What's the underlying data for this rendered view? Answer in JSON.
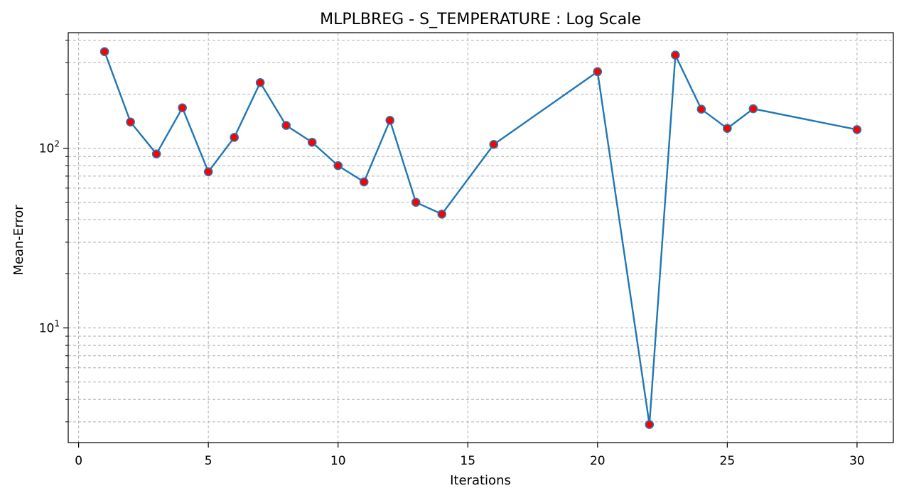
{
  "chart_data": {
    "type": "line",
    "title": "MLPLBREG - S_TEMPERATURE : Log Scale",
    "xlabel": "Iterations",
    "ylabel": "Mean-Error",
    "xlim": [
      -0.4,
      31.4
    ],
    "ylim": [
      2.3,
      440
    ],
    "yscale": "log",
    "grid": true,
    "x_ticks": [
      0,
      5,
      10,
      15,
      20,
      25,
      30
    ],
    "y_major_ticks": [
      {
        "value": 10,
        "base": "10",
        "exp": "1"
      },
      {
        "value": 100,
        "base": "10",
        "exp": "2"
      }
    ],
    "y_minor_ticks": [
      3,
      4,
      5,
      6,
      7,
      8,
      9,
      20,
      30,
      40,
      50,
      60,
      70,
      80,
      90,
      200,
      300,
      400
    ],
    "series": [
      {
        "x": [
          1,
          2,
          3,
          4,
          5,
          6,
          7,
          8,
          9,
          10,
          11,
          12,
          13,
          14,
          16,
          20,
          22,
          23,
          24,
          25,
          26,
          30
        ],
        "y": [
          345,
          140,
          93,
          168,
          74,
          115,
          232,
          134,
          108,
          80,
          65,
          143,
          50,
          43,
          105,
          267,
          2.9,
          330,
          165,
          129,
          166,
          127
        ]
      }
    ],
    "colors": {
      "line": "#1f77b4",
      "marker_fill": "#ff0000",
      "marker_edge": "#1f77b4",
      "grid": "#b0b0b0",
      "axes": "#000000"
    }
  }
}
